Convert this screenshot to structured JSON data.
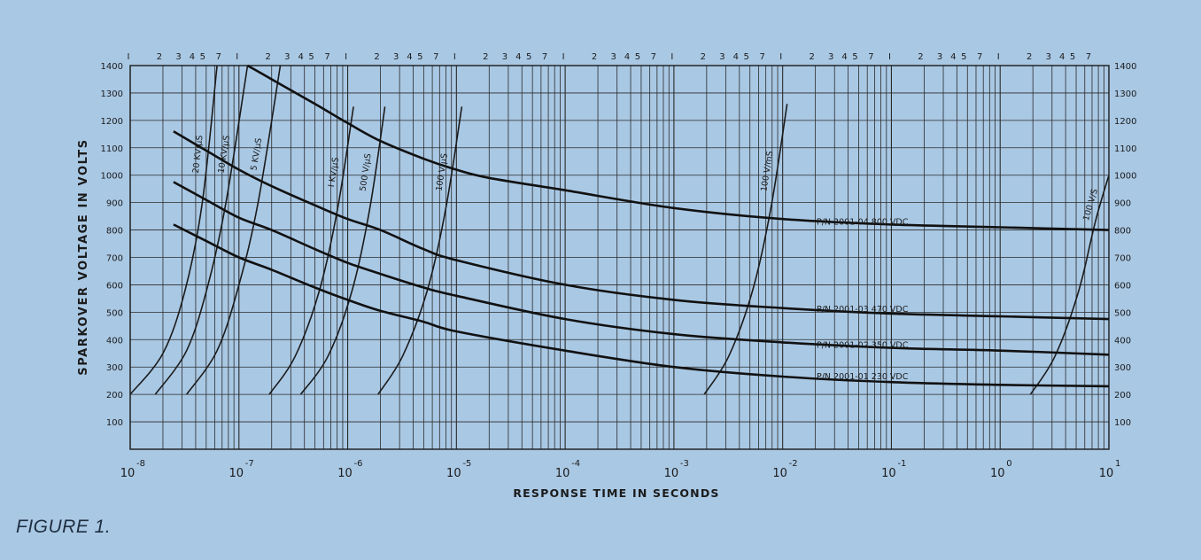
{
  "caption": "FIGURE 1.",
  "chart_data": {
    "type": "line",
    "title": "",
    "xlabel": "RESPONSE TIME IN SECONDS",
    "ylabel": "SPARKOVER VOLTAGE IN VOLTS",
    "x_scale": "log",
    "xlim": [
      1e-08,
      10
    ],
    "ylim": [
      0,
      1400
    ],
    "grid": true,
    "x_tick_exponents": [
      "-8",
      "-7",
      "-6",
      "-5",
      "-4",
      "-3",
      "-2",
      "-1",
      "0",
      "1"
    ],
    "x_minor_top_labels": [
      "2",
      "3",
      "4",
      "5",
      "7",
      "I"
    ],
    "y_ticks": [
      100,
      200,
      300,
      400,
      500,
      600,
      700,
      800,
      900,
      1000,
      1100,
      1200,
      1300,
      1400
    ],
    "series": [
      {
        "name": "P/N 2001-04  800 VDC",
        "points": [
          [
            1.2e-07,
            1400
          ],
          [
            2e-07,
            1350
          ],
          [
            5e-07,
            1260
          ],
          [
            1e-06,
            1190
          ],
          [
            2e-06,
            1125
          ],
          [
            5e-06,
            1060
          ],
          [
            1e-05,
            1020
          ],
          [
            2e-05,
            990
          ],
          [
            0.0001,
            945
          ],
          [
            0.001,
            880
          ],
          [
            0.01,
            840
          ],
          [
            0.1,
            820
          ],
          [
            1,
            810
          ],
          [
            10,
            800
          ]
        ]
      },
      {
        "name": "P/N 2001-03  470 VDC",
        "points": [
          [
            2.5e-08,
            1160
          ],
          [
            5e-08,
            1090
          ],
          [
            1e-07,
            1020
          ],
          [
            2e-07,
            960
          ],
          [
            5e-07,
            890
          ],
          [
            1e-06,
            840
          ],
          [
            2e-06,
            800
          ],
          [
            5e-06,
            730
          ],
          [
            1e-05,
            690
          ],
          [
            0.0001,
            600
          ],
          [
            0.001,
            545
          ],
          [
            0.01,
            515
          ],
          [
            0.1,
            495
          ],
          [
            1,
            485
          ],
          [
            10,
            475
          ]
        ]
      },
      {
        "name": "P/N 2001-02  350 VDC",
        "points": [
          [
            2.5e-08,
            975
          ],
          [
            5e-08,
            910
          ],
          [
            1e-07,
            845
          ],
          [
            2e-07,
            800
          ],
          [
            5e-07,
            730
          ],
          [
            1e-06,
            680
          ],
          [
            2e-06,
            640
          ],
          [
            5e-06,
            590
          ],
          [
            1e-05,
            560
          ],
          [
            0.0001,
            475
          ],
          [
            0.001,
            420
          ],
          [
            0.01,
            390
          ],
          [
            0.1,
            370
          ],
          [
            1,
            360
          ],
          [
            10,
            345
          ]
        ]
      },
      {
        "name": "P/N 2001-01  230 VDC",
        "points": [
          [
            2.5e-08,
            820
          ],
          [
            5e-08,
            760
          ],
          [
            1e-07,
            700
          ],
          [
            2e-07,
            655
          ],
          [
            5e-07,
            590
          ],
          [
            1e-06,
            545
          ],
          [
            2e-06,
            505
          ],
          [
            5e-06,
            465
          ],
          [
            1e-05,
            430
          ],
          [
            0.0001,
            360
          ],
          [
            0.001,
            300
          ],
          [
            0.01,
            265
          ],
          [
            0.1,
            245
          ],
          [
            1,
            235
          ],
          [
            10,
            230
          ]
        ]
      }
    ],
    "ramp_lines": [
      {
        "label": "20 KV/μS",
        "points": [
          [
            1e-08,
            200
          ],
          [
            2e-08,
            350
          ],
          [
            3.2e-08,
            580
          ],
          [
            4.6e-08,
            900
          ],
          [
            6.3e-08,
            1400
          ]
        ]
      },
      {
        "label": "10 KV/μS",
        "points": [
          [
            1.7e-08,
            200
          ],
          [
            3.3e-08,
            360
          ],
          [
            5.2e-08,
            600
          ],
          [
            7.6e-08,
            900
          ],
          [
            1.2e-07,
            1400
          ]
        ]
      },
      {
        "label": "5 KV/μS",
        "points": [
          [
            3.3e-08,
            200
          ],
          [
            6.3e-08,
            360
          ],
          [
            1e-07,
            600
          ],
          [
            1.5e-07,
            900
          ],
          [
            2.4e-07,
            1400
          ]
        ]
      },
      {
        "label": "I KV/μS",
        "points": [
          [
            1.9e-07,
            200
          ],
          [
            3.3e-07,
            340
          ],
          [
            5.5e-07,
            580
          ],
          [
            8.1e-07,
            880
          ],
          [
            1.13e-06,
            1250
          ]
        ]
      },
      {
        "label": "500 V/μS",
        "points": [
          [
            3.7e-07,
            200
          ],
          [
            6.6e-07,
            340
          ],
          [
            1.1e-06,
            580
          ],
          [
            1.6e-06,
            880
          ],
          [
            2.2e-06,
            1250
          ]
        ]
      },
      {
        "label": "100 V/μS",
        "points": [
          [
            1.9e-06,
            200
          ],
          [
            3.2e-06,
            340
          ],
          [
            5.4e-06,
            580
          ],
          [
            8e-06,
            880
          ],
          [
            1.12e-05,
            1250
          ]
        ]
      },
      {
        "label": "100 V/mS",
        "points": [
          [
            0.0019,
            200
          ],
          [
            0.0032,
            340
          ],
          [
            0.0053,
            580
          ],
          [
            0.0078,
            880
          ],
          [
            0.011,
            1260
          ]
        ]
      },
      {
        "label": "100 V/S",
        "points": [
          [
            1.9,
            200
          ],
          [
            3.2,
            340
          ],
          [
            5.3,
            580
          ],
          [
            7.5,
            830
          ],
          [
            10,
            1000
          ]
        ]
      }
    ]
  }
}
